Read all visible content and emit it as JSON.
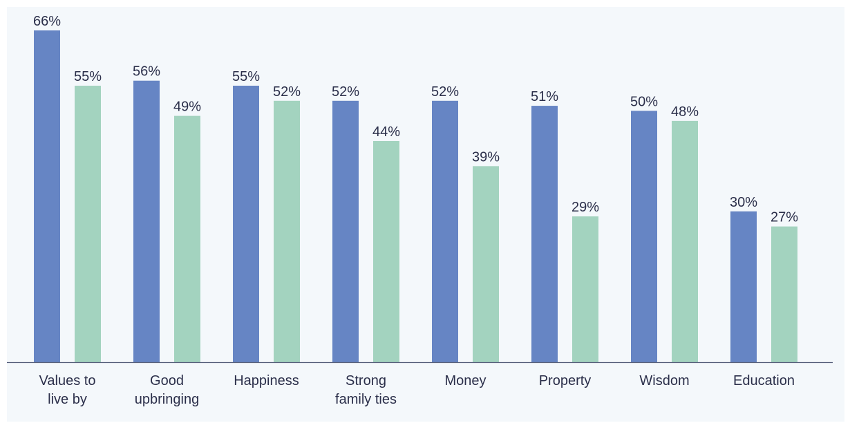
{
  "chart_data": {
    "type": "bar",
    "categories": [
      "Values to live by",
      "Good upbringing",
      "Happiness",
      "Strong family ties",
      "Money",
      "Property",
      "Wisdom",
      "Education"
    ],
    "series": [
      {
        "color": "#6685c4",
        "values": [
          66,
          56,
          55,
          52,
          52,
          51,
          50,
          30
        ],
        "value_labels": [
          "66%",
          "56%",
          "55%",
          "52%",
          "52%",
          "51%",
          "50%",
          "30%"
        ]
      },
      {
        "color": "#a3d3bf",
        "values": [
          55,
          49,
          52,
          44,
          39,
          29,
          48,
          27
        ],
        "value_labels": [
          "55%",
          "49%",
          "52%",
          "44%",
          "39%",
          "29%",
          "48%",
          "27%"
        ]
      }
    ]
  }
}
